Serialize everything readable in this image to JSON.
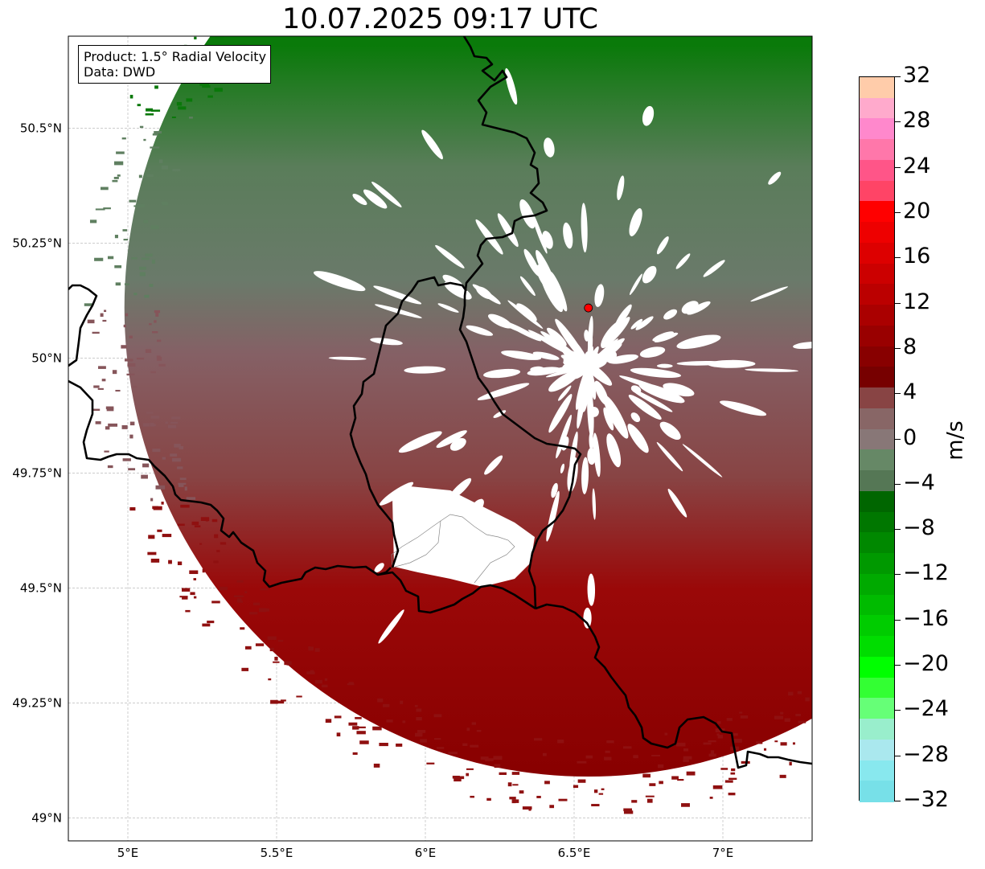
{
  "title": "10.07.2025 09:17 UTC",
  "info": {
    "line1": "Product: 1.5° Radial Velocity",
    "line2": "Data: DWD"
  },
  "map": {
    "lon_range": [
      4.8,
      7.3
    ],
    "lat_range": [
      48.95,
      50.7
    ],
    "lon_ticks": [
      {
        "value": 5.0,
        "label": "5°E"
      },
      {
        "value": 5.5,
        "label": "5.5°E"
      },
      {
        "value": 6.0,
        "label": "6°E"
      },
      {
        "value": 6.5,
        "label": "6.5°E"
      },
      {
        "value": 7.0,
        "label": "7°E"
      }
    ],
    "lat_ticks": [
      {
        "value": 49.0,
        "label": "49°N"
      },
      {
        "value": 49.25,
        "label": "49.25°N"
      },
      {
        "value": 49.5,
        "label": "49.5°N"
      },
      {
        "value": 49.75,
        "label": "49.75°N"
      },
      {
        "value": 50.0,
        "label": "50°N"
      },
      {
        "value": 50.25,
        "label": "50.25°N"
      },
      {
        "value": 50.5,
        "label": "50.5°N"
      }
    ],
    "radar_site": {
      "lon": 6.548,
      "lat": 50.109,
      "color": "#ff0000"
    },
    "radar_range_deg_lat": 1.04
  },
  "colorbar": {
    "min": -32,
    "max": 32,
    "unit": "m/s",
    "ticks": [
      32,
      28,
      24,
      20,
      16,
      12,
      8,
      4,
      0,
      -4,
      -8,
      -12,
      -16,
      -20,
      -24,
      -28,
      -32
    ],
    "tick_labels": [
      "32",
      "28",
      "24",
      "20",
      "16",
      "12",
      "8",
      "4",
      "0",
      "−4",
      "−8",
      "−12",
      "−16",
      "−20",
      "−24",
      "−28",
      "−32"
    ],
    "colors": [
      "#ffccaa",
      "#ffaacc",
      "#ff88cc",
      "#ff77aa",
      "#ff5588",
      "#ff4466",
      "#ff0000",
      "#ee0000",
      "#dd0000",
      "#cc0000",
      "#bb0000",
      "#aa0000",
      "#990000",
      "#880000",
      "#770000",
      "#884444",
      "#886666",
      "#887777",
      "#668866",
      "#557755",
      "#006600",
      "#007700",
      "#008800",
      "#009900",
      "#00aa00",
      "#00bb00",
      "#00cc00",
      "#00dd00",
      "#00ff00",
      "#33ff33",
      "#66ff77",
      "#99eecc",
      "#aae8ee",
      "#88e8ee",
      "#77e0e8"
    ]
  }
}
